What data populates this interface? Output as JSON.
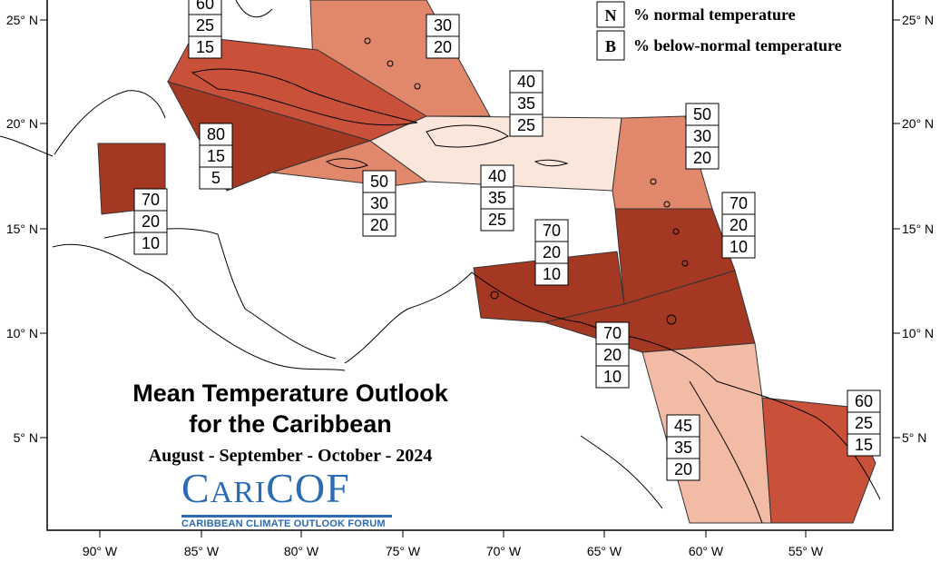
{
  "title_line1": "Mean Temperature Outlook",
  "title_line2": "for the Caribbean",
  "period": "August - September - October - 2024",
  "logo": {
    "word_part1": "C",
    "word_part2": "ARI",
    "word_part3": "COF",
    "subtitle": "CARIBBEAN CLIMATE OUTLOOK FORUM"
  },
  "legend": [
    {
      "key": "N",
      "text": "% normal temperature"
    },
    {
      "key": "B",
      "text": "% below-normal temperature"
    }
  ],
  "lon_labels": [
    "90° W",
    "85° W",
    "80° W",
    "75° W",
    "70° W",
    "65° W",
    "60° W",
    "55° W"
  ],
  "lat_labels": [
    "25° N",
    "20° N",
    "15° N",
    "10° N",
    "5° N"
  ],
  "colors": {
    "very_high": "#a53823",
    "high": "#c9513a",
    "medium": "#e1876c",
    "low": "#f2bba6",
    "very_low": "#fbe6dc"
  },
  "regions": [
    {
      "name": "bahamas",
      "values": [
        "30",
        "20"
      ]
    },
    {
      "name": "cuba-west",
      "values": [
        "60",
        "25",
        "15"
      ]
    },
    {
      "name": "cuba-central",
      "values": [
        "80",
        "15",
        "5"
      ]
    },
    {
      "name": "hispaniola-north",
      "values": [
        "40",
        "35",
        "25"
      ]
    },
    {
      "name": "jamaica",
      "values": [
        "50",
        "30",
        "20"
      ]
    },
    {
      "name": "hispaniola-south",
      "values": [
        "40",
        "35",
        "25"
      ]
    },
    {
      "name": "belize",
      "values": [
        "70",
        "20",
        "10"
      ]
    },
    {
      "name": "leeward",
      "values": [
        "50",
        "30",
        "20"
      ]
    },
    {
      "name": "windward",
      "values": [
        "70",
        "20",
        "10"
      ]
    },
    {
      "name": "abc-islands",
      "values": [
        "70",
        "20",
        "10"
      ]
    },
    {
      "name": "trinidad",
      "values": [
        "70",
        "20",
        "10"
      ]
    },
    {
      "name": "guyana",
      "values": [
        "45",
        "35",
        "20"
      ]
    },
    {
      "name": "suriname",
      "values": [
        "60",
        "25",
        "15"
      ]
    }
  ]
}
